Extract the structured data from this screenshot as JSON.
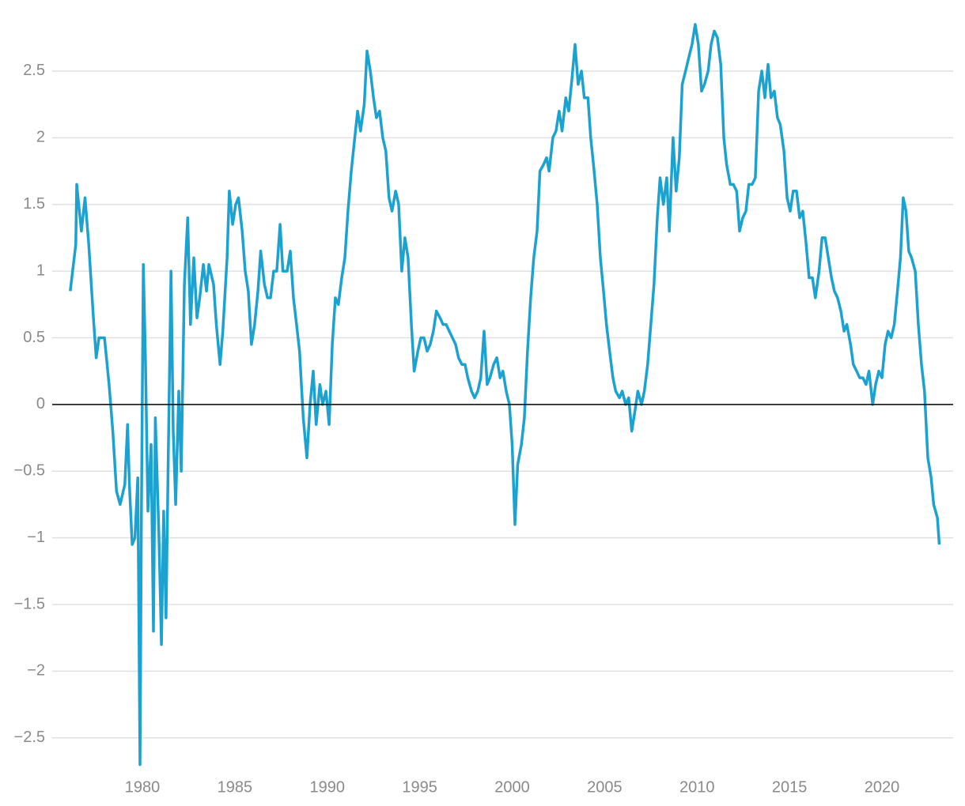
{
  "chart_data": {
    "type": "line",
    "x": [
      1976.1,
      1976.4,
      1976.45,
      1976.7,
      1976.9,
      1977.1,
      1977.35,
      1977.5,
      1977.65,
      1977.95,
      1978.2,
      1978.4,
      1978.6,
      1978.8,
      1979.05,
      1979.2,
      1979.3,
      1979.45,
      1979.6,
      1979.75,
      1979.87,
      1979.95,
      1980.05,
      1980.17,
      1980.3,
      1980.47,
      1980.6,
      1980.7,
      1980.9,
      1981.03,
      1981.15,
      1981.28,
      1981.4,
      1981.55,
      1981.67,
      1981.8,
      1981.97,
      1982.1,
      1982.27,
      1982.45,
      1982.6,
      1982.78,
      1982.95,
      1983.1,
      1983.3,
      1983.47,
      1983.6,
      1983.85,
      1984.0,
      1984.2,
      1984.35,
      1984.58,
      1984.7,
      1984.88,
      1985.05,
      1985.2,
      1985.4,
      1985.56,
      1985.73,
      1985.9,
      1986.07,
      1986.25,
      1986.4,
      1986.6,
      1986.77,
      1986.93,
      1987.1,
      1987.27,
      1987.45,
      1987.6,
      1987.83,
      1988.0,
      1988.17,
      1988.34,
      1988.5,
      1988.7,
      1988.9,
      1989.07,
      1989.24,
      1989.4,
      1989.6,
      1989.75,
      1989.93,
      1990.1,
      1990.27,
      1990.44,
      1990.6,
      1990.78,
      1990.95,
      1991.12,
      1991.3,
      1991.45,
      1991.64,
      1991.8,
      1992.0,
      1992.15,
      1992.33,
      1992.5,
      1992.66,
      1992.83,
      1993.0,
      1993.17,
      1993.34,
      1993.5,
      1993.7,
      1993.86,
      1994.03,
      1994.2,
      1994.37,
      1994.55,
      1994.7,
      1994.9,
      1995.06,
      1995.23,
      1995.4,
      1995.57,
      1995.74,
      1995.9,
      1996.1,
      1996.26,
      1996.43,
      1996.6,
      1996.77,
      1996.94,
      1997.1,
      1997.28,
      1997.45,
      1997.6,
      1997.8,
      1997.97,
      1998.14,
      1998.3,
      1998.48,
      1998.65,
      1998.8,
      1999.0,
      1999.17,
      1999.35,
      1999.5,
      1999.68,
      1999.85,
      2000.0,
      2000.15,
      2000.3,
      2000.5,
      2000.66,
      2000.83,
      2001.0,
      2001.17,
      2001.35,
      2001.5,
      2001.7,
      2001.86,
      2002.0,
      2002.2,
      2002.37,
      2002.54,
      2002.7,
      2002.9,
      2003.06,
      2003.24,
      2003.4,
      2003.57,
      2003.75,
      2003.9,
      2004.1,
      2004.25,
      2004.4,
      2004.6,
      2004.77,
      2004.94,
      2005.1,
      2005.27,
      2005.45,
      2005.6,
      2005.8,
      2005.95,
      2006.14,
      2006.3,
      2006.47,
      2006.64,
      2006.8,
      2007.0,
      2007.15,
      2007.33,
      2007.5,
      2007.67,
      2007.85,
      2008.0,
      2008.18,
      2008.36,
      2008.5,
      2008.7,
      2008.87,
      2009.04,
      2009.2,
      2009.38,
      2009.55,
      2009.73,
      2009.9,
      2010.07,
      2010.24,
      2010.4,
      2010.6,
      2010.76,
      2010.93,
      2011.1,
      2011.28,
      2011.45,
      2011.6,
      2011.8,
      2011.96,
      2012.14,
      2012.3,
      2012.47,
      2012.64,
      2012.8,
      2012.98,
      2013.15,
      2013.33,
      2013.5,
      2013.67,
      2013.84,
      2014.0,
      2014.18,
      2014.35,
      2014.5,
      2014.7,
      2014.87,
      2015.04,
      2015.2,
      2015.38,
      2015.55,
      2015.72,
      2015.9,
      2016.06,
      2016.24,
      2016.4,
      2016.6,
      2016.76,
      2016.93,
      2017.1,
      2017.27,
      2017.43,
      2017.6,
      2017.78,
      2017.95,
      2018.1,
      2018.3,
      2018.45,
      2018.63,
      2018.8,
      2018.97,
      2019.14,
      2019.3,
      2019.5,
      2019.66,
      2019.83,
      2020.0,
      2020.17,
      2020.33,
      2020.5,
      2020.67,
      2020.84,
      2021.0,
      2021.15,
      2021.3,
      2021.45,
      2021.6,
      2021.8,
      2021.97,
      2022.14,
      2022.3,
      2022.48,
      2022.66,
      2022.8,
      2023.0,
      2023.1
    ],
    "series": [
      {
        "color": "#1ca2d0",
        "values": [
          0.85,
          1.2,
          1.65,
          1.3,
          1.55,
          1.2,
          0.65,
          0.35,
          0.5,
          0.5,
          0.15,
          -0.2,
          -0.65,
          -0.75,
          -0.6,
          -0.15,
          -0.6,
          -1.05,
          -1.0,
          -0.55,
          -2.7,
          -0.8,
          1.05,
          0.3,
          -0.8,
          -0.3,
          -1.7,
          -0.1,
          -1.0,
          -1.8,
          -0.8,
          -1.6,
          -0.4,
          1.0,
          -0.2,
          -0.75,
          0.1,
          -0.5,
          0.9,
          1.4,
          0.6,
          1.1,
          0.65,
          0.8,
          1.05,
          0.85,
          1.05,
          0.9,
          0.6,
          0.3,
          0.55,
          1.1,
          1.6,
          1.35,
          1.5,
          1.55,
          1.3,
          1.0,
          0.85,
          0.45,
          0.6,
          0.85,
          1.15,
          0.9,
          0.8,
          0.8,
          1.0,
          1.0,
          1.35,
          1.0,
          1.0,
          1.15,
          0.8,
          0.6,
          0.4,
          -0.1,
          -0.4,
          0.0,
          0.25,
          -0.15,
          0.15,
          0.0,
          0.1,
          -0.15,
          0.45,
          0.8,
          0.75,
          0.95,
          1.1,
          1.45,
          1.75,
          1.95,
          2.2,
          2.05,
          2.25,
          2.65,
          2.5,
          2.3,
          2.15,
          2.2,
          2.0,
          1.9,
          1.55,
          1.45,
          1.6,
          1.5,
          1.0,
          1.25,
          1.1,
          0.6,
          0.25,
          0.4,
          0.5,
          0.5,
          0.4,
          0.45,
          0.55,
          0.7,
          0.65,
          0.6,
          0.6,
          0.55,
          0.5,
          0.45,
          0.35,
          0.3,
          0.3,
          0.2,
          0.1,
          0.05,
          0.1,
          0.2,
          0.55,
          0.15,
          0.2,
          0.3,
          0.35,
          0.2,
          0.25,
          0.1,
          0.0,
          -0.3,
          -0.9,
          -0.45,
          -0.3,
          -0.1,
          0.4,
          0.8,
          1.1,
          1.3,
          1.75,
          1.8,
          1.85,
          1.75,
          2.0,
          2.05,
          2.2,
          2.05,
          2.3,
          2.2,
          2.45,
          2.7,
          2.4,
          2.5,
          2.3,
          2.3,
          2.0,
          1.8,
          1.5,
          1.1,
          0.85,
          0.6,
          0.4,
          0.2,
          0.1,
          0.05,
          0.1,
          0.0,
          0.05,
          -0.2,
          -0.05,
          0.1,
          0.0,
          0.1,
          0.3,
          0.6,
          0.9,
          1.4,
          1.7,
          1.5,
          1.7,
          1.3,
          2.0,
          1.6,
          1.85,
          2.4,
          2.5,
          2.6,
          2.7,
          2.85,
          2.7,
          2.35,
          2.4,
          2.5,
          2.7,
          2.8,
          2.75,
          2.55,
          2.0,
          1.8,
          1.65,
          1.65,
          1.6,
          1.3,
          1.4,
          1.45,
          1.65,
          1.65,
          1.7,
          2.35,
          2.5,
          2.3,
          2.55,
          2.3,
          2.35,
          2.15,
          2.1,
          1.9,
          1.55,
          1.45,
          1.6,
          1.6,
          1.4,
          1.45,
          1.2,
          0.95,
          0.95,
          0.8,
          1.0,
          1.25,
          1.25,
          1.1,
          0.95,
          0.85,
          0.8,
          0.7,
          0.55,
          0.6,
          0.45,
          0.3,
          0.25,
          0.2,
          0.2,
          0.15,
          0.25,
          0.0,
          0.15,
          0.25,
          0.2,
          0.45,
          0.55,
          0.5,
          0.6,
          0.85,
          1.1,
          1.55,
          1.45,
          1.15,
          1.1,
          1.0,
          0.6,
          0.3,
          0.1,
          -0.4,
          -0.55,
          -0.75,
          -0.85,
          -1.05
        ]
      }
    ],
    "xlim": [
      1976,
      2023.5
    ],
    "xticks": [
      1980,
      1985,
      1990,
      1995,
      2000,
      2005,
      2010,
      2015,
      2020
    ],
    "ylim": [
      -2.75,
      2.95
    ],
    "yticks": [
      {
        "value": -2.5,
        "label": "−2.5"
      },
      {
        "value": -2,
        "label": "−2"
      },
      {
        "value": -1.5,
        "label": "−1.5"
      },
      {
        "value": -1,
        "label": "−1"
      },
      {
        "value": -0.5,
        "label": "−0.5"
      },
      0,
      0.5,
      1,
      1.5,
      2,
      2.5
    ],
    "grid": true
  }
}
